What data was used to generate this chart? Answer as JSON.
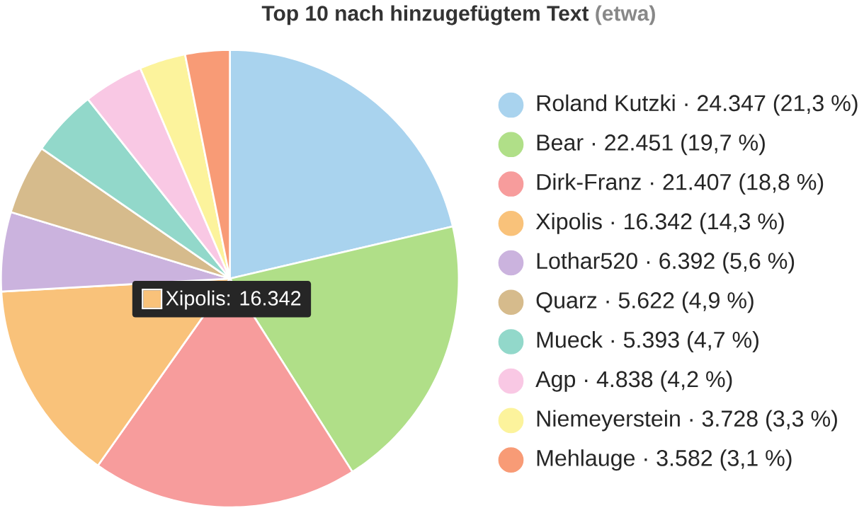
{
  "chart_data": {
    "type": "pie",
    "title": "Top 10 nach hinzugefügtem Text",
    "subtitle": "(etwa)",
    "categories": [
      "Roland Kutzki",
      "Bear",
      "Dirk-Franz",
      "Xipolis",
      "Lothar520",
      "Quarz",
      "Mueck",
      "Agp",
      "Niemeyerstein",
      "Mehlauge"
    ],
    "values": [
      24347,
      22451,
      21407,
      16342,
      6392,
      5622,
      5393,
      4838,
      3728,
      3582
    ],
    "value_labels": [
      "· 24.347 (21,3 %)",
      "· 22.451 (19,7 %)",
      "· 21.407 (18,8 %)",
      "· 16.342 (14,3 %)",
      "· 6.392 (5,6 %)",
      "· 5.622 (4,9 %)",
      "· 5.393 (4,7 %)",
      "· 4.838 (4,2 %)",
      "· 3.728 (3,3 %)",
      "· 3.582 (3,1 %)"
    ],
    "colors": [
      "#a9d3ee",
      "#b0df88",
      "#f79c9c",
      "#f9c27a",
      "#cbb3de",
      "#d6bb8c",
      "#92d8ca",
      "#f9c8e4",
      "#fcf39c",
      "#f89b76"
    ],
    "legend": "right",
    "annotations": [
      "Xipolis: 16.342"
    ]
  }
}
